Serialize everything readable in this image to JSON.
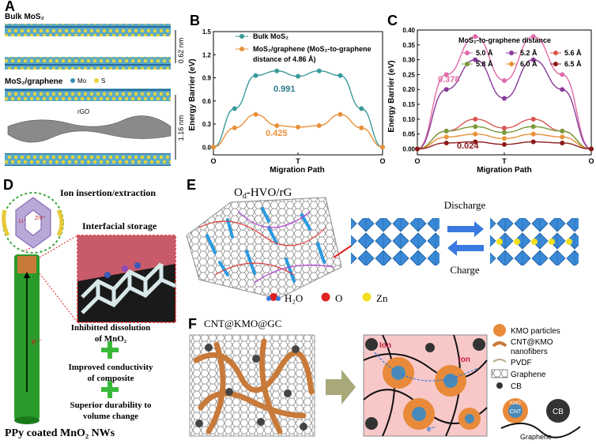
{
  "panelA": {
    "label": "A",
    "bulk_title": "Bulk MoS₂",
    "hybrid_title": "MoS₂/graphene",
    "legend_mo": "Mo",
    "legend_s": "S",
    "rgo_label": "rGO",
    "dist1": "0.62 nm",
    "dist2": "1.16 nm"
  },
  "panelB": {
    "label": "B",
    "legend": [
      "Bulk MoS₂",
      "MoS₂/graphene (MoS₂-to-graphene",
      "distance of 4.86 Å)"
    ],
    "annot_high": "0.991",
    "annot_low": "0.425",
    "colors": {
      "bulk": "#3a9a9a",
      "hybrid": "#e8913a"
    }
  },
  "panelC": {
    "label": "C",
    "legend_title": "MoS₂-to-graphene  distance",
    "legend": [
      "5.0 Å",
      "5.2 Å",
      "5.6 Å",
      "5.8 Å",
      "6.0 Å",
      "6.5 Å"
    ],
    "annot_high": "0.378",
    "annot_low": "0.024",
    "colors": [
      "#e06aa8",
      "#8a3a9a",
      "#d9544d",
      "#7a9a3a",
      "#e8913a",
      "#8a1a1a"
    ]
  },
  "panelD": {
    "label": "D",
    "ion_text": "Ion insertion/extraction",
    "interfacial": "Interfacial storage",
    "li": "Li⁺",
    "zn": "Zn²⁺",
    "e_label": "e⁻",
    "b1a": "Inhibitted dissolution",
    "b1b": "of MnO₂",
    "b2a": "Improved conductivity",
    "b2b": "of composite",
    "b3a": "Superior durability to",
    "b3b": "volume change",
    "caption": "PPy coated MnO₂ NWs"
  },
  "panelE": {
    "label": "E",
    "title": "Od-HVO/rG",
    "title_main": "O",
    "title_sub": "d",
    "title_rest": "-HVO/rG",
    "discharge": "Discharge",
    "charge": "Charge",
    "leg_h2o": "H₂O",
    "leg_o": "O",
    "leg_zn": "Zn"
  },
  "panelF": {
    "label": "F",
    "title": "CNT@KMO@GC",
    "ion1": "Ion",
    "ion2": "Ion",
    "electron": "e⁻",
    "kmo_inner": "KMO",
    "cnt_inner": "CNT",
    "cb_inner": "CB",
    "legend": [
      "KMO particles",
      "CNT@KMO",
      "nanofibers",
      "PVDF",
      "Graphene",
      "CB"
    ],
    "graphene_label": "Graphene"
  },
  "chart_data": [
    {
      "type": "line",
      "title": "",
      "xlabel": "Migration Path",
      "ylabel": "Energy Barrier (eV)",
      "ylim": [
        -0.1,
        1.5
      ],
      "yticks": [
        "0.0",
        "0.3",
        "0.6",
        "0.9",
        "1.2",
        "1.5"
      ],
      "x": [
        0,
        0.125,
        0.25,
        0.375,
        0.5,
        0.625,
        0.75,
        0.875,
        1
      ],
      "xticks": [
        "O",
        "T",
        "O"
      ],
      "series": [
        {
          "name": "Bulk MoS₂",
          "values": [
            0.0,
            0.5,
            0.93,
            0.99,
            0.92,
            0.99,
            0.93,
            0.5,
            0.0
          ]
        },
        {
          "name": "MoS₂/graphene (MoS₂-to-graphene distance of 4.86 Å)",
          "values": [
            0.0,
            0.25,
            0.425,
            0.28,
            0.26,
            0.28,
            0.425,
            0.25,
            0.0
          ]
        }
      ],
      "legend_position": "top-right"
    },
    {
      "type": "line",
      "title": "",
      "xlabel": "Migration Path",
      "ylabel": "Energy Barrier (eV)",
      "ylim": [
        -0.02,
        0.4
      ],
      "yticks": [
        "0.00",
        "0.05",
        "0.10",
        "0.15",
        "0.20",
        "0.25",
        "0.30",
        "0.35",
        "0.40"
      ],
      "x": [
        0,
        0.167,
        0.333,
        0.5,
        0.667,
        0.833,
        1
      ],
      "xticks": [
        "O",
        "T",
        "O"
      ],
      "series": [
        {
          "name": "5.0 Å",
          "values": [
            0.0,
            0.25,
            0.378,
            0.23,
            0.378,
            0.25,
            0.0
          ]
        },
        {
          "name": "5.2 Å",
          "values": [
            0.0,
            0.2,
            0.3,
            0.17,
            0.3,
            0.2,
            0.0
          ]
        },
        {
          "name": "5.6 Å",
          "values": [
            0.0,
            0.06,
            0.1,
            0.07,
            0.1,
            0.06,
            0.0
          ]
        },
        {
          "name": "5.8 Å",
          "values": [
            0.0,
            0.06,
            0.075,
            0.055,
            0.075,
            0.06,
            0.0
          ]
        },
        {
          "name": "6.0 Å",
          "values": [
            0.0,
            0.04,
            0.05,
            0.035,
            0.05,
            0.04,
            0.0
          ]
        },
        {
          "name": "6.5 Å",
          "values": [
            0.0,
            0.02,
            0.024,
            0.015,
            0.024,
            0.02,
            0.0
          ]
        }
      ],
      "legend_position": "top"
    }
  ]
}
